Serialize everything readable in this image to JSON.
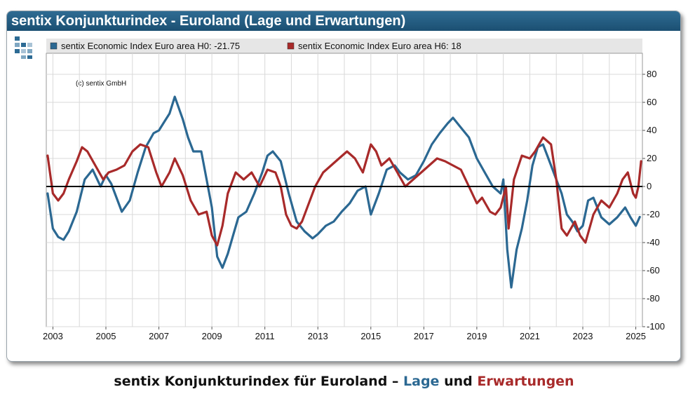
{
  "window": {
    "title": "sentix Konjunkturindex - Euroland (Lage und Erwartungen)"
  },
  "caption": {
    "part1": "sentix Konjunkturindex für Euroland – ",
    "lage": "Lage",
    "und": " und ",
    "erwartungen": "Erwartungen"
  },
  "colors": {
    "title_bar": "#1f5a80",
    "lage": "#2b6892",
    "erwartungen": "#a82a2a",
    "zero_line": "#000000",
    "legend_bg": "#e6e6e6",
    "grid": "#d9d9d9"
  },
  "chart_data": {
    "type": "line",
    "title": "",
    "annotation": "(c) sentix GmbH",
    "xlabel": "",
    "ylabel": "",
    "y_axis_side": "right",
    "xlim": [
      2002.75,
      2025.25
    ],
    "ylim": [
      -100,
      95
    ],
    "x_ticks": [
      2003,
      2005,
      2007,
      2009,
      2011,
      2013,
      2015,
      2017,
      2019,
      2021,
      2023,
      2025
    ],
    "x_tick_labels": [
      "2003",
      "2005",
      "2007",
      "2009",
      "2011",
      "2013",
      "2015",
      "2017",
      "2019",
      "2021",
      "2023",
      "2025"
    ],
    "y_ticks": [
      80,
      60,
      40,
      20,
      0,
      -20,
      -40,
      -60,
      -80,
      -100
    ],
    "y_tick_labels": [
      "80",
      "60",
      "40",
      "20",
      "0",
      "-20",
      "-40",
      "-60",
      "-80",
      "-100"
    ],
    "grid": true,
    "zero_line": true,
    "legend_position": "top",
    "series": [
      {
        "name": "sentix Economic Index Euro area H0: -21.75",
        "color": "#2b6892",
        "x": [
          2002.8,
          2003.0,
          2003.2,
          2003.4,
          2003.6,
          2003.9,
          2004.2,
          2004.5,
          2004.8,
          2005.0,
          2005.2,
          2005.6,
          2005.9,
          2006.2,
          2006.5,
          2006.8,
          2007.0,
          2007.2,
          2007.4,
          2007.6,
          2007.9,
          2008.1,
          2008.3,
          2008.6,
          2008.8,
          2009.0,
          2009.2,
          2009.4,
          2009.6,
          2009.8,
          2010.0,
          2010.3,
          2010.6,
          2010.9,
          2011.1,
          2011.3,
          2011.6,
          2011.9,
          2012.2,
          2012.5,
          2012.8,
          2013.0,
          2013.3,
          2013.6,
          2013.9,
          2014.2,
          2014.5,
          2014.8,
          2015.0,
          2015.3,
          2015.6,
          2015.9,
          2016.1,
          2016.4,
          2016.7,
          2017.0,
          2017.3,
          2017.6,
          2017.9,
          2018.1,
          2018.4,
          2018.7,
          2019.0,
          2019.3,
          2019.6,
          2019.9,
          2020.0,
          2020.15,
          2020.3,
          2020.5,
          2020.7,
          2020.9,
          2021.1,
          2021.3,
          2021.5,
          2021.8,
          2022.0,
          2022.2,
          2022.4,
          2022.6,
          2022.8,
          2023.0,
          2023.2,
          2023.4,
          2023.7,
          2024.0,
          2024.3,
          2024.6,
          2024.8,
          2025.0,
          2025.15
        ],
        "values": [
          -5,
          -30,
          -36,
          -38,
          -32,
          -18,
          5,
          12,
          0,
          8,
          2,
          -18,
          -10,
          10,
          28,
          38,
          40,
          46,
          52,
          64,
          48,
          35,
          25,
          25,
          5,
          -15,
          -50,
          -58,
          -48,
          -35,
          -22,
          -18,
          -5,
          10,
          22,
          25,
          18,
          -5,
          -25,
          -32,
          -37,
          -34,
          -28,
          -25,
          -18,
          -12,
          -3,
          0,
          -20,
          -5,
          12,
          15,
          10,
          5,
          8,
          18,
          30,
          38,
          45,
          49,
          42,
          35,
          20,
          10,
          0,
          -5,
          5,
          -45,
          -72,
          -45,
          -30,
          -10,
          15,
          28,
          30,
          15,
          5,
          -5,
          -20,
          -25,
          -32,
          -28,
          -10,
          -8,
          -22,
          -27,
          -22,
          -15,
          -22,
          -28,
          -21.75
        ]
      },
      {
        "name": "sentix Economic Index Euro area H6: 18",
        "color": "#a82a2a",
        "x": [
          2002.8,
          2003.0,
          2003.2,
          2003.4,
          2003.6,
          2003.9,
          2004.1,
          2004.3,
          2004.6,
          2004.9,
          2005.1,
          2005.4,
          2005.7,
          2006.0,
          2006.3,
          2006.6,
          2006.9,
          2007.1,
          2007.4,
          2007.6,
          2007.9,
          2008.2,
          2008.5,
          2008.8,
          2009.0,
          2009.2,
          2009.4,
          2009.6,
          2009.9,
          2010.2,
          2010.5,
          2010.8,
          2011.1,
          2011.4,
          2011.6,
          2011.8,
          2012.0,
          2012.2,
          2012.4,
          2012.6,
          2012.9,
          2013.2,
          2013.5,
          2013.8,
          2014.1,
          2014.4,
          2014.7,
          2015.0,
          2015.2,
          2015.4,
          2015.7,
          2016.0,
          2016.3,
          2016.6,
          2016.9,
          2017.2,
          2017.5,
          2017.8,
          2018.1,
          2018.4,
          2018.7,
          2019.0,
          2019.2,
          2019.5,
          2019.7,
          2019.9,
          2020.1,
          2020.2,
          2020.4,
          2020.7,
          2021.0,
          2021.2,
          2021.5,
          2021.8,
          2022.0,
          2022.2,
          2022.4,
          2022.7,
          2022.9,
          2023.1,
          2023.4,
          2023.7,
          2024.0,
          2024.3,
          2024.5,
          2024.7,
          2024.9,
          2025.0,
          2025.1,
          2025.2
        ],
        "values": [
          22,
          -5,
          -10,
          -5,
          5,
          18,
          28,
          25,
          15,
          5,
          10,
          12,
          15,
          25,
          30,
          28,
          10,
          0,
          10,
          20,
          8,
          -10,
          -20,
          -18,
          -35,
          -42,
          -28,
          -5,
          10,
          5,
          10,
          0,
          12,
          10,
          0,
          -20,
          -28,
          -30,
          -25,
          -15,
          0,
          10,
          15,
          20,
          25,
          20,
          10,
          30,
          25,
          15,
          20,
          10,
          0,
          5,
          10,
          15,
          20,
          18,
          15,
          12,
          0,
          -12,
          -8,
          -18,
          -20,
          -15,
          0,
          -30,
          5,
          22,
          20,
          25,
          35,
          30,
          5,
          -30,
          -35,
          -25,
          -35,
          -40,
          -20,
          -10,
          -15,
          -5,
          5,
          10,
          -5,
          -8,
          0,
          18
        ]
      }
    ]
  }
}
